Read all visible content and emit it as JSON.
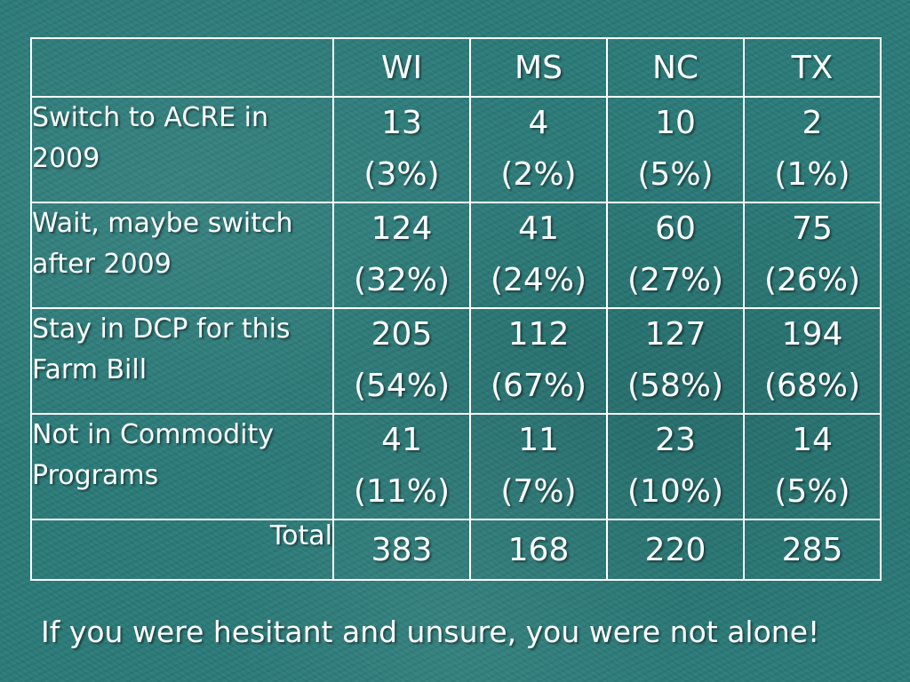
{
  "table": {
    "columns": [
      "WI",
      "MS",
      "NC",
      "TX"
    ],
    "rows": [
      {
        "label": "Switch to ACRE in 2009",
        "cells": [
          {
            "count": "13",
            "pct": "(3%)"
          },
          {
            "count": "4",
            "pct": "(2%)"
          },
          {
            "count": "10",
            "pct": "(5%)"
          },
          {
            "count": "2",
            "pct": "(1%)"
          }
        ]
      },
      {
        "label": "Wait, maybe switch after 2009",
        "cells": [
          {
            "count": "124",
            "pct": "(32%)"
          },
          {
            "count": "41",
            "pct": "(24%)"
          },
          {
            "count": "60",
            "pct": "(27%)"
          },
          {
            "count": "75",
            "pct": "(26%)"
          }
        ]
      },
      {
        "label": "Stay in DCP for this Farm Bill",
        "cells": [
          {
            "count": "205",
            "pct": "(54%)"
          },
          {
            "count": "112",
            "pct": "(67%)"
          },
          {
            "count": "127",
            "pct": "(58%)"
          },
          {
            "count": "194",
            "pct": "(68%)"
          }
        ]
      },
      {
        "label": "Not in Commodity Programs",
        "cells": [
          {
            "count": "41",
            "pct": "(11%)"
          },
          {
            "count": "11",
            "pct": "(7%)"
          },
          {
            "count": "23",
            "pct": "(10%)"
          },
          {
            "count": "14",
            "pct": "(5%)"
          }
        ]
      }
    ],
    "total": {
      "label": "Total",
      "values": [
        "383",
        "168",
        "220",
        "285"
      ]
    }
  },
  "footer": "If you were hesitant and unsure, you were not alone!"
}
